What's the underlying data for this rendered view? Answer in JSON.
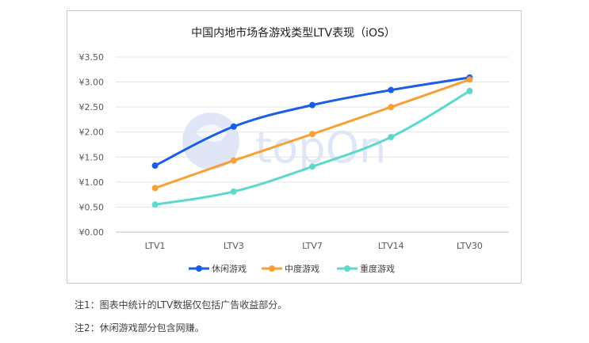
{
  "chart_data": {
    "type": "line",
    "title": "中国内地市场各游戏类型LTV表现（iOS）",
    "categories": [
      "LTV1",
      "LTV3",
      "LTV7",
      "LTV14",
      "LTV30"
    ],
    "ylim": [
      0,
      3.5
    ],
    "yticks": [
      "¥0.00",
      "¥0.50",
      "¥1.00",
      "¥1.50",
      "¥2.00",
      "¥2.50",
      "¥3.00",
      "¥3.50"
    ],
    "grid": true,
    "legend": "bottom",
    "series": [
      {
        "name": "休闲游戏",
        "color": "#1a5ee8",
        "values": [
          1.33,
          2.11,
          2.54,
          2.84,
          3.09
        ]
      },
      {
        "name": "中度游戏",
        "color": "#f7a035",
        "values": [
          0.88,
          1.43,
          1.96,
          2.5,
          3.05
        ]
      },
      {
        "name": "重度游戏",
        "color": "#5dd8cc",
        "values": [
          0.55,
          0.81,
          1.31,
          1.9,
          2.82
        ]
      }
    ]
  },
  "watermark": {
    "text": "topOn"
  },
  "notes": {
    "note1": "注1：图表中统计的LTV数据仅包括广告收益部分。",
    "note2": "注2：休闲游戏部分包含网赚。"
  }
}
